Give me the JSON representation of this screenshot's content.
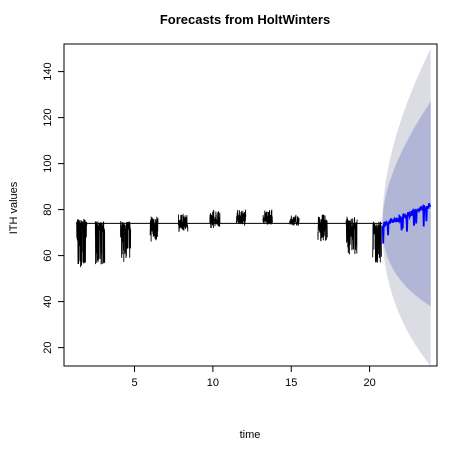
{
  "chart_data": {
    "type": "line",
    "title": "Forecasts from HoltWinters",
    "xlabel": "time",
    "ylabel": "ITH values",
    "xlim": [
      0.5,
      24.3
    ],
    "ylim": [
      12,
      152
    ],
    "xticks": [
      5,
      10,
      15,
      20
    ],
    "yticks": [
      20,
      40,
      60,
      80,
      100,
      120,
      140
    ],
    "grid": false,
    "legend": "none",
    "colors": {
      "observed": "#000000",
      "forecast_mean": "#0000ff",
      "band_80": "#b1b5d6",
      "band_95": "#dcdce4"
    },
    "series": [
      {
        "kind": "observed",
        "segments": [
          {
            "start": 1.3,
            "end": 1.95,
            "base": 74,
            "low": 55,
            "high": 75
          },
          {
            "start": 2.5,
            "end": 3.1,
            "base": 73,
            "low": 56,
            "high": 75
          },
          {
            "start": 4.1,
            "end": 4.75,
            "base": 73,
            "low": 57,
            "high": 75
          },
          {
            "start": 6.0,
            "end": 6.5,
            "base": 74,
            "low": 66,
            "high": 77
          },
          {
            "start": 7.8,
            "end": 8.4,
            "base": 74,
            "low": 70,
            "high": 78
          },
          {
            "start": 9.8,
            "end": 10.45,
            "base": 76,
            "low": 72,
            "high": 80
          },
          {
            "start": 11.5,
            "end": 12.1,
            "base": 76,
            "low": 73,
            "high": 80
          },
          {
            "start": 13.2,
            "end": 13.8,
            "base": 76,
            "low": 73,
            "high": 80
          },
          {
            "start": 14.9,
            "end": 15.5,
            "base": 75,
            "low": 73,
            "high": 78
          },
          {
            "start": 16.7,
            "end": 17.3,
            "base": 74,
            "low": 66,
            "high": 78
          },
          {
            "start": 18.5,
            "end": 19.2,
            "base": 73,
            "low": 60,
            "high": 77
          },
          {
            "start": 20.2,
            "end": 20.75,
            "base": 72,
            "low": 56,
            "high": 75
          }
        ],
        "flat_level": 74
      },
      {
        "kind": "forecast",
        "x_start": 20.8,
        "x_end": 23.9,
        "mean_start": 73,
        "mean_end": 82,
        "lo80_end": 38,
        "hi80_end": 127,
        "lo95_end": 12,
        "hi95_end": 150
      }
    ]
  }
}
